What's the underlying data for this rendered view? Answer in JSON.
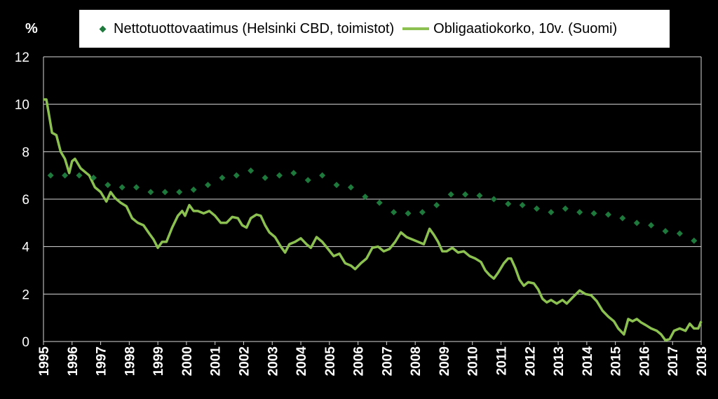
{
  "chart_data": {
    "type": "line",
    "unit_label": "%",
    "ylim": [
      0,
      12
    ],
    "yticks": [
      0,
      2,
      4,
      6,
      8,
      10,
      12
    ],
    "xlim": [
      1995,
      2018
    ],
    "xticks": [
      "1995",
      "1996",
      "1997",
      "1998",
      "1999",
      "2000",
      "2001",
      "2002",
      "2003",
      "2004",
      "2005",
      "2006",
      "2007",
      "2008",
      "2009",
      "2010",
      "2011",
      "2012",
      "2013",
      "2014",
      "2015",
      "2016",
      "2017",
      "2018"
    ],
    "grid": true,
    "legend_position": "top",
    "series": [
      {
        "name": "Nettotuottovaatimus (Helsinki CBD, toimistot)",
        "type": "scatter",
        "marker": "diamond",
        "color": "#1e7a3c",
        "points": [
          [
            1995.25,
            7.0
          ],
          [
            1995.75,
            7.0
          ],
          [
            1996.25,
            7.0
          ],
          [
            1996.75,
            6.9
          ],
          [
            1997.25,
            6.6
          ],
          [
            1997.75,
            6.5
          ],
          [
            1998.25,
            6.5
          ],
          [
            1998.75,
            6.3
          ],
          [
            1999.25,
            6.3
          ],
          [
            1999.75,
            6.3
          ],
          [
            2000.25,
            6.4
          ],
          [
            2000.75,
            6.6
          ],
          [
            2001.25,
            6.9
          ],
          [
            2001.75,
            7.0
          ],
          [
            2002.25,
            7.2
          ],
          [
            2002.75,
            6.9
          ],
          [
            2003.25,
            7.0
          ],
          [
            2003.75,
            7.1
          ],
          [
            2004.25,
            6.8
          ],
          [
            2004.75,
            7.0
          ],
          [
            2005.25,
            6.6
          ],
          [
            2005.75,
            6.5
          ],
          [
            2006.25,
            6.1
          ],
          [
            2006.75,
            5.85
          ],
          [
            2007.25,
            5.45
          ],
          [
            2007.75,
            5.4
          ],
          [
            2008.25,
            5.45
          ],
          [
            2008.75,
            5.75
          ],
          [
            2009.25,
            6.2
          ],
          [
            2009.75,
            6.2
          ],
          [
            2010.25,
            6.15
          ],
          [
            2010.75,
            6.0
          ],
          [
            2011.25,
            5.8
          ],
          [
            2011.75,
            5.75
          ],
          [
            2012.25,
            5.6
          ],
          [
            2012.75,
            5.45
          ],
          [
            2013.25,
            5.6
          ],
          [
            2013.75,
            5.45
          ],
          [
            2014.25,
            5.4
          ],
          [
            2014.75,
            5.35
          ],
          [
            2015.25,
            5.2
          ],
          [
            2015.75,
            5.0
          ],
          [
            2016.25,
            4.9
          ],
          [
            2016.75,
            4.65
          ],
          [
            2017.25,
            4.55
          ],
          [
            2017.75,
            4.25
          ]
        ]
      },
      {
        "name": "Obligaatiokorko, 10v. (Suomi)",
        "type": "line",
        "color": "#8cc152",
        "points": [
          [
            1995.0,
            10.2
          ],
          [
            1995.1,
            10.2
          ],
          [
            1995.2,
            9.5
          ],
          [
            1995.3,
            8.8
          ],
          [
            1995.45,
            8.7
          ],
          [
            1995.6,
            8.0
          ],
          [
            1995.75,
            7.7
          ],
          [
            1995.9,
            7.1
          ],
          [
            1996.0,
            7.6
          ],
          [
            1996.1,
            7.7
          ],
          [
            1996.3,
            7.3
          ],
          [
            1996.5,
            7.1
          ],
          [
            1996.6,
            7.0
          ],
          [
            1996.8,
            6.5
          ],
          [
            1997.0,
            6.3
          ],
          [
            1997.2,
            5.9
          ],
          [
            1997.35,
            6.3
          ],
          [
            1997.5,
            6.05
          ],
          [
            1997.7,
            5.85
          ],
          [
            1997.9,
            5.7
          ],
          [
            1998.1,
            5.2
          ],
          [
            1998.3,
            5.0
          ],
          [
            1998.5,
            4.9
          ],
          [
            1998.7,
            4.55
          ],
          [
            1998.85,
            4.3
          ],
          [
            1999.0,
            3.95
          ],
          [
            1999.15,
            4.2
          ],
          [
            1999.3,
            4.2
          ],
          [
            1999.5,
            4.8
          ],
          [
            1999.7,
            5.3
          ],
          [
            1999.85,
            5.5
          ],
          [
            1999.95,
            5.3
          ],
          [
            2000.1,
            5.75
          ],
          [
            2000.25,
            5.5
          ],
          [
            2000.4,
            5.5
          ],
          [
            2000.6,
            5.4
          ],
          [
            2000.8,
            5.5
          ],
          [
            2001.0,
            5.3
          ],
          [
            2001.2,
            5.0
          ],
          [
            2001.4,
            5.0
          ],
          [
            2001.6,
            5.25
          ],
          [
            2001.8,
            5.2
          ],
          [
            2001.95,
            4.9
          ],
          [
            2002.1,
            4.8
          ],
          [
            2002.25,
            5.2
          ],
          [
            2002.45,
            5.35
          ],
          [
            2002.6,
            5.3
          ],
          [
            2002.75,
            4.9
          ],
          [
            2002.9,
            4.6
          ],
          [
            2003.1,
            4.4
          ],
          [
            2003.3,
            4.0
          ],
          [
            2003.45,
            3.75
          ],
          [
            2003.6,
            4.1
          ],
          [
            2003.8,
            4.2
          ],
          [
            2004.0,
            4.35
          ],
          [
            2004.2,
            4.1
          ],
          [
            2004.35,
            3.95
          ],
          [
            2004.55,
            4.4
          ],
          [
            2004.75,
            4.2
          ],
          [
            2004.95,
            3.9
          ],
          [
            2005.15,
            3.6
          ],
          [
            2005.35,
            3.7
          ],
          [
            2005.55,
            3.3
          ],
          [
            2005.75,
            3.2
          ],
          [
            2005.9,
            3.05
          ],
          [
            2006.1,
            3.3
          ],
          [
            2006.3,
            3.5
          ],
          [
            2006.5,
            3.95
          ],
          [
            2006.7,
            4.0
          ],
          [
            2006.9,
            3.8
          ],
          [
            2007.1,
            3.9
          ],
          [
            2007.3,
            4.2
          ],
          [
            2007.5,
            4.6
          ],
          [
            2007.7,
            4.4
          ],
          [
            2007.9,
            4.3
          ],
          [
            2008.1,
            4.2
          ],
          [
            2008.3,
            4.1
          ],
          [
            2008.5,
            4.75
          ],
          [
            2008.65,
            4.5
          ],
          [
            2008.8,
            4.2
          ],
          [
            2008.95,
            3.8
          ],
          [
            2009.1,
            3.8
          ],
          [
            2009.3,
            3.95
          ],
          [
            2009.5,
            3.75
          ],
          [
            2009.7,
            3.8
          ],
          [
            2009.9,
            3.6
          ],
          [
            2010.1,
            3.5
          ],
          [
            2010.3,
            3.35
          ],
          [
            2010.45,
            3.0
          ],
          [
            2010.6,
            2.8
          ],
          [
            2010.75,
            2.65
          ],
          [
            2010.9,
            2.9
          ],
          [
            2011.1,
            3.3
          ],
          [
            2011.25,
            3.5
          ],
          [
            2011.35,
            3.5
          ],
          [
            2011.5,
            3.1
          ],
          [
            2011.65,
            2.6
          ],
          [
            2011.8,
            2.35
          ],
          [
            2011.95,
            2.5
          ],
          [
            2012.15,
            2.45
          ],
          [
            2012.3,
            2.2
          ],
          [
            2012.45,
            1.8
          ],
          [
            2012.6,
            1.65
          ],
          [
            2012.75,
            1.75
          ],
          [
            2012.95,
            1.6
          ],
          [
            2013.15,
            1.75
          ],
          [
            2013.3,
            1.6
          ],
          [
            2013.5,
            1.85
          ],
          [
            2013.75,
            2.15
          ],
          [
            2013.95,
            2.0
          ],
          [
            2014.15,
            1.95
          ],
          [
            2014.35,
            1.7
          ],
          [
            2014.55,
            1.3
          ],
          [
            2014.75,
            1.05
          ],
          [
            2014.95,
            0.85
          ],
          [
            2015.1,
            0.55
          ],
          [
            2015.3,
            0.3
          ],
          [
            2015.45,
            0.95
          ],
          [
            2015.6,
            0.85
          ],
          [
            2015.75,
            0.95
          ],
          [
            2015.9,
            0.8
          ],
          [
            2016.05,
            0.7
          ],
          [
            2016.25,
            0.55
          ],
          [
            2016.45,
            0.45
          ],
          [
            2016.6,
            0.3
          ],
          [
            2016.75,
            0.05
          ],
          [
            2016.9,
            0.1
          ],
          [
            2017.05,
            0.45
          ],
          [
            2017.25,
            0.55
          ],
          [
            2017.45,
            0.45
          ],
          [
            2017.6,
            0.75
          ],
          [
            2017.75,
            0.55
          ],
          [
            2017.9,
            0.55
          ],
          [
            2018.0,
            0.85
          ]
        ]
      }
    ]
  }
}
